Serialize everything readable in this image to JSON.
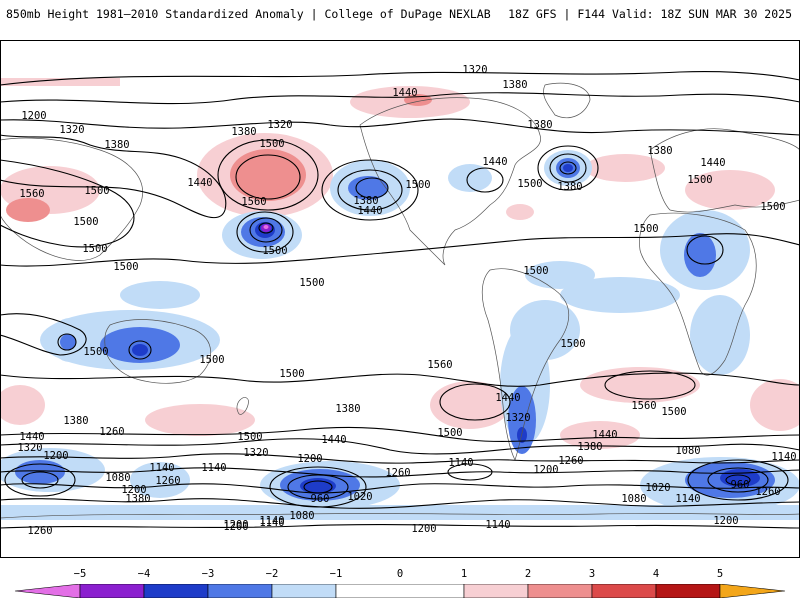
{
  "header": {
    "title": "850mb Height 1981–2010 Standardized Anomaly | College of DuPage NEXLAB",
    "run_info": "18Z GFS | F144 Valid: 18Z SUN MAR 30 2025"
  },
  "colors": {
    "neg5": "#e36fe6",
    "neg4": "#8b1fcf",
    "neg3": "#1e3cc9",
    "neg2": "#4f78e6",
    "neg1": "#c1dcf7",
    "pos1": "#f7cfd3",
    "pos2": "#ee8f8f",
    "pos3": "#dc4a4a",
    "pos4": "#b51616",
    "pos5": "#f3a61a",
    "land_outline": "#555555",
    "contour": "#000000"
  },
  "colorbar": {
    "ticks": [
      "−5",
      "−4",
      "−3",
      "−2",
      "−1",
      "0",
      "1",
      "2",
      "3",
      "4",
      "5"
    ]
  },
  "contour_labels": [
    {
      "text": "1320"
    },
    {
      "text": "1380"
    },
    {
      "text": "1440"
    },
    {
      "text": "1200"
    },
    {
      "text": "1320"
    },
    {
      "text": "1380"
    },
    {
      "text": "1320"
    },
    {
      "text": "1380"
    },
    {
      "text": "1500"
    },
    {
      "text": "1440"
    },
    {
      "text": "1560"
    },
    {
      "text": "1560"
    },
    {
      "text": "1500"
    },
    {
      "text": "1500"
    },
    {
      "text": "1500"
    },
    {
      "text": "1380"
    },
    {
      "text": "1440"
    },
    {
      "text": "1500"
    },
    {
      "text": "1500"
    },
    {
      "text": "1380"
    },
    {
      "text": "1440"
    },
    {
      "text": "1500"
    },
    {
      "text": "1380"
    },
    {
      "text": "1380"
    },
    {
      "text": "1440"
    },
    {
      "text": "1500"
    },
    {
      "text": "1500"
    },
    {
      "text": "1500"
    },
    {
      "text": "1500"
    },
    {
      "text": "1500"
    },
    {
      "text": "1500"
    },
    {
      "text": "1500"
    },
    {
      "text": "1500"
    },
    {
      "text": "1500"
    },
    {
      "text": "1560"
    },
    {
      "text": "1500"
    },
    {
      "text": "1560"
    },
    {
      "text": "1500"
    },
    {
      "text": "1380"
    },
    {
      "text": "1440"
    },
    {
      "text": "1380"
    },
    {
      "text": "1260"
    },
    {
      "text": "1320"
    },
    {
      "text": "1200"
    },
    {
      "text": "1500"
    },
    {
      "text": "1440"
    },
    {
      "text": "1320"
    },
    {
      "text": "1500"
    },
    {
      "text": "1440"
    },
    {
      "text": "1320"
    },
    {
      "text": "1440"
    },
    {
      "text": "1380"
    },
    {
      "text": "1260"
    },
    {
      "text": "1200"
    },
    {
      "text": "1140"
    },
    {
      "text": "1080"
    },
    {
      "text": "1140"
    },
    {
      "text": "1080"
    },
    {
      "text": "1260"
    },
    {
      "text": "1200"
    },
    {
      "text": "1380"
    },
    {
      "text": "1140"
    },
    {
      "text": "1200"
    },
    {
      "text": "960"
    },
    {
      "text": "1020"
    },
    {
      "text": "1260"
    },
    {
      "text": "1140"
    },
    {
      "text": "1200"
    },
    {
      "text": "1080"
    },
    {
      "text": "1140"
    },
    {
      "text": "1020"
    },
    {
      "text": "1080"
    },
    {
      "text": "1140"
    },
    {
      "text": "960"
    },
    {
      "text": "1260"
    },
    {
      "text": "1200"
    },
    {
      "text": "1260"
    },
    {
      "text": "1200"
    },
    {
      "text": "1140"
    },
    {
      "text": "1200"
    },
    {
      "text": "1140"
    }
  ]
}
